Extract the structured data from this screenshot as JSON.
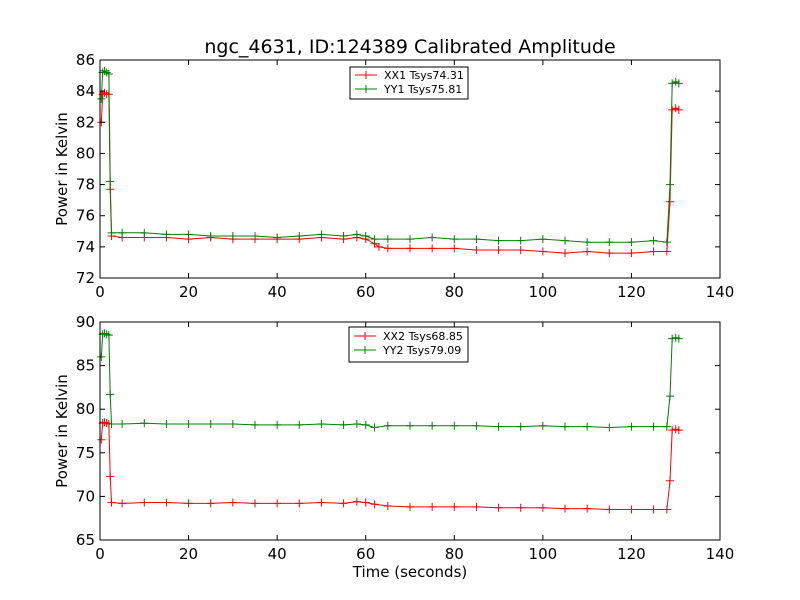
{
  "title": "ngc_4631, ID:124389 Calibrated Amplitude",
  "xlabel": "Time (seconds)",
  "chart_data": [
    {
      "type": "line",
      "ylabel": "Power in Kelvin",
      "xlim": [
        0,
        140
      ],
      "ylim": [
        72,
        86
      ],
      "xticks": [
        0,
        20,
        40,
        60,
        80,
        100,
        120,
        140
      ],
      "yticks": [
        72,
        74,
        76,
        78,
        80,
        82,
        84,
        86
      ],
      "legend_position": "top-center",
      "grid": false,
      "series": [
        {
          "name": "XX1 Tsys74.31",
          "color": "#ff0000",
          "marker": "+",
          "points": [
            [
              0.3,
              82.0
            ],
            [
              0.6,
              83.8
            ],
            [
              1.0,
              83.9
            ],
            [
              1.5,
              83.8
            ],
            [
              2.0,
              83.8
            ],
            [
              2.3,
              77.7
            ],
            [
              2.6,
              74.7
            ],
            [
              5,
              74.6
            ],
            [
              10,
              74.6
            ],
            [
              15,
              74.6
            ],
            [
              20,
              74.5
            ],
            [
              25,
              74.6
            ],
            [
              30,
              74.5
            ],
            [
              35,
              74.5
            ],
            [
              40,
              74.5
            ],
            [
              45,
              74.5
            ],
            [
              50,
              74.6
            ],
            [
              55,
              74.5
            ],
            [
              58,
              74.6
            ],
            [
              60,
              74.5
            ],
            [
              62,
              74.2
            ],
            [
              63,
              74.0
            ],
            [
              65,
              73.9
            ],
            [
              70,
              73.9
            ],
            [
              75,
              73.9
            ],
            [
              80,
              73.9
            ],
            [
              85,
              73.8
            ],
            [
              90,
              73.8
            ],
            [
              95,
              73.8
            ],
            [
              100,
              73.7
            ],
            [
              105,
              73.6
            ],
            [
              110,
              73.7
            ],
            [
              115,
              73.6
            ],
            [
              120,
              73.6
            ],
            [
              125,
              73.7
            ],
            [
              128,
              73.7
            ],
            [
              128.7,
              76.9
            ],
            [
              129.2,
              82.8
            ],
            [
              130.0,
              82.9
            ],
            [
              130.7,
              82.8
            ]
          ]
        },
        {
          "name": "YY1 Tsys75.81",
          "color": "#008000",
          "marker": "+",
          "points": [
            [
              0.3,
              83.5
            ],
            [
              0.6,
              85.2
            ],
            [
              1.0,
              85.3
            ],
            [
              1.5,
              85.2
            ],
            [
              2.0,
              85.1
            ],
            [
              2.3,
              78.2
            ],
            [
              2.6,
              74.9
            ],
            [
              5,
              74.9
            ],
            [
              10,
              74.9
            ],
            [
              15,
              74.8
            ],
            [
              20,
              74.8
            ],
            [
              25,
              74.7
            ],
            [
              30,
              74.7
            ],
            [
              35,
              74.7
            ],
            [
              40,
              74.6
            ],
            [
              45,
              74.7
            ],
            [
              50,
              74.8
            ],
            [
              55,
              74.7
            ],
            [
              58,
              74.8
            ],
            [
              60,
              74.7
            ],
            [
              62,
              74.5
            ],
            [
              65,
              74.5
            ],
            [
              70,
              74.5
            ],
            [
              75,
              74.6
            ],
            [
              80,
              74.5
            ],
            [
              85,
              74.5
            ],
            [
              90,
              74.4
            ],
            [
              95,
              74.4
            ],
            [
              100,
              74.5
            ],
            [
              105,
              74.4
            ],
            [
              110,
              74.3
            ],
            [
              115,
              74.3
            ],
            [
              120,
              74.3
            ],
            [
              125,
              74.4
            ],
            [
              128,
              74.3
            ],
            [
              128.7,
              78.0
            ],
            [
              129.2,
              84.5
            ],
            [
              130.0,
              84.6
            ],
            [
              130.7,
              84.5
            ]
          ]
        }
      ]
    },
    {
      "type": "line",
      "ylabel": "Power in Kelvin",
      "xlim": [
        0,
        140
      ],
      "ylim": [
        65,
        90
      ],
      "xticks": [
        0,
        20,
        40,
        60,
        80,
        100,
        120,
        140
      ],
      "yticks": [
        65,
        70,
        75,
        80,
        85,
        90
      ],
      "legend_position": "top-center",
      "grid": false,
      "series": [
        {
          "name": "XX2 Tsys68.85",
          "color": "#ff0000",
          "marker": "+",
          "points": [
            [
              0.3,
              76.5
            ],
            [
              0.6,
              78.4
            ],
            [
              1.0,
              78.5
            ],
            [
              1.5,
              78.4
            ],
            [
              2.0,
              78.3
            ],
            [
              2.3,
              72.3
            ],
            [
              2.6,
              69.3
            ],
            [
              5,
              69.2
            ],
            [
              10,
              69.3
            ],
            [
              15,
              69.3
            ],
            [
              20,
              69.2
            ],
            [
              25,
              69.2
            ],
            [
              30,
              69.3
            ],
            [
              35,
              69.2
            ],
            [
              40,
              69.2
            ],
            [
              45,
              69.2
            ],
            [
              50,
              69.3
            ],
            [
              55,
              69.2
            ],
            [
              58,
              69.4
            ],
            [
              60,
              69.3
            ],
            [
              62,
              69.1
            ],
            [
              65,
              68.9
            ],
            [
              70,
              68.8
            ],
            [
              75,
              68.8
            ],
            [
              80,
              68.8
            ],
            [
              85,
              68.8
            ],
            [
              90,
              68.7
            ],
            [
              95,
              68.7
            ],
            [
              100,
              68.7
            ],
            [
              105,
              68.6
            ],
            [
              110,
              68.6
            ],
            [
              115,
              68.5
            ],
            [
              120,
              68.5
            ],
            [
              125,
              68.5
            ],
            [
              128,
              68.5
            ],
            [
              128.7,
              71.8
            ],
            [
              129.2,
              77.6
            ],
            [
              130.0,
              77.7
            ],
            [
              130.7,
              77.6
            ]
          ]
        },
        {
          "name": "YY2 Tsys79.09",
          "color": "#008000",
          "marker": "+",
          "points": [
            [
              0.3,
              86.0
            ],
            [
              0.6,
              88.6
            ],
            [
              1.0,
              88.7
            ],
            [
              1.5,
              88.6
            ],
            [
              2.0,
              88.5
            ],
            [
              2.3,
              81.7
            ],
            [
              2.6,
              78.3
            ],
            [
              5,
              78.3
            ],
            [
              10,
              78.4
            ],
            [
              15,
              78.3
            ],
            [
              20,
              78.3
            ],
            [
              25,
              78.3
            ],
            [
              30,
              78.3
            ],
            [
              35,
              78.2
            ],
            [
              40,
              78.2
            ],
            [
              45,
              78.2
            ],
            [
              50,
              78.3
            ],
            [
              55,
              78.2
            ],
            [
              58,
              78.3
            ],
            [
              60,
              78.2
            ],
            [
              62,
              77.9
            ],
            [
              65,
              78.1
            ],
            [
              70,
              78.1
            ],
            [
              75,
              78.1
            ],
            [
              80,
              78.1
            ],
            [
              85,
              78.1
            ],
            [
              90,
              78.0
            ],
            [
              95,
              78.0
            ],
            [
              100,
              78.1
            ],
            [
              105,
              78.0
            ],
            [
              110,
              78.0
            ],
            [
              115,
              77.9
            ],
            [
              120,
              78.0
            ],
            [
              125,
              78.0
            ],
            [
              128,
              78.0
            ],
            [
              128.7,
              81.5
            ],
            [
              129.2,
              88.1
            ],
            [
              130.0,
              88.2
            ],
            [
              130.7,
              88.1
            ]
          ]
        }
      ]
    }
  ]
}
